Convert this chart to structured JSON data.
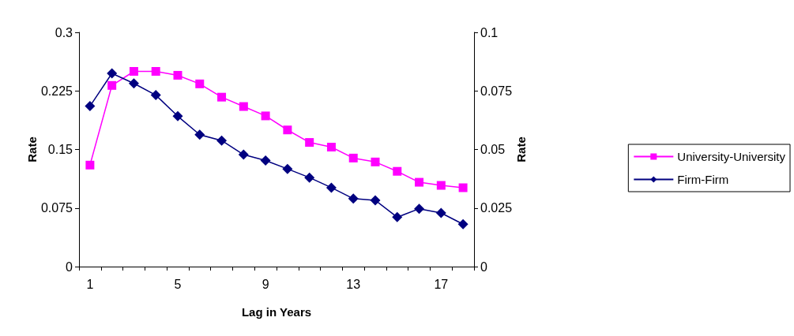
{
  "chart_data": {
    "type": "line",
    "xlabel": "Lag in Years",
    "ylabel": "Rate",
    "y2label": "Rate",
    "categories": [
      "1",
      null,
      null,
      null,
      "5",
      null,
      null,
      null,
      "9",
      null,
      null,
      null,
      "13",
      null,
      null,
      null,
      "17",
      null
    ],
    "series": [
      {
        "name": "University-University",
        "color": "#ff00ff",
        "marker": "square",
        "values": [
          0.13,
          0.232,
          0.25,
          0.25,
          0.245,
          0.234,
          0.217,
          0.205,
          0.193,
          0.175,
          0.159,
          0.153,
          0.139,
          0.134,
          0.122,
          0.108,
          0.104,
          0.101
        ]
      },
      {
        "name": "Firm-Firm",
        "color": "#000080",
        "marker": "diamond",
        "axis": "y2",
        "values": [
          0.0685,
          0.0825,
          0.0782,
          0.0732,
          0.0642,
          0.0563,
          0.0538,
          0.0478,
          0.0453,
          0.0417,
          0.038,
          0.0337,
          0.029,
          0.0283,
          0.0211,
          0.0247,
          0.0229,
          0.0181
        ]
      }
    ],
    "ylim": [
      0,
      0.3
    ],
    "yticks": [
      0,
      0.075,
      0.15,
      0.225,
      0.3
    ],
    "y2lim": [
      0,
      0.1
    ],
    "y2ticks": [
      0,
      0.025,
      0.05,
      0.075,
      0.1
    ],
    "grid": false,
    "legend": "right",
    "line_style": "solid"
  }
}
